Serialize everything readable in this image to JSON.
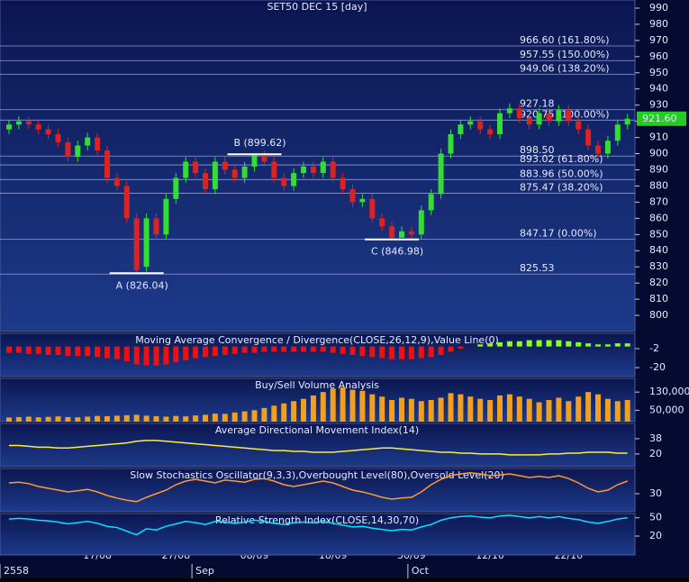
{
  "chart_data": [
    {
      "type": "candlestick",
      "title": "SET50 DEC 15  [day]",
      "categories": [
        null,
        null,
        null,
        null,
        null,
        null,
        null,
        null,
        null,
        "17/08",
        null,
        null,
        null,
        null,
        null,
        null,
        null,
        "27/08",
        null,
        null,
        null,
        null,
        null,
        null,
        null,
        "08/09",
        null,
        null,
        null,
        null,
        null,
        null,
        null,
        "18/09",
        null,
        null,
        null,
        null,
        null,
        null,
        null,
        "30/09",
        null,
        null,
        null,
        null,
        null,
        null,
        null,
        "12/10",
        null,
        null,
        null,
        null,
        null,
        null,
        null,
        "22/10",
        null,
        null,
        null,
        null,
        null,
        null
      ],
      "periods": [
        {
          "label": "2558",
          "start": 0
        },
        {
          "label": "Sep",
          "start": 19
        },
        {
          "label": "Oct",
          "start": 41
        }
      ],
      "open": [
        915,
        918,
        920,
        918,
        915,
        912,
        907,
        898,
        905,
        910,
        902,
        885,
        880,
        860,
        830,
        860,
        850,
        872,
        885,
        895,
        888,
        878,
        895,
        890,
        885,
        892,
        899,
        895,
        885,
        880,
        888,
        892,
        888,
        895,
        885,
        878,
        870,
        872,
        860,
        855,
        848,
        852,
        850,
        865,
        875,
        900,
        912,
        918,
        920,
        915,
        912,
        925,
        928,
        922,
        918,
        925,
        920,
        927,
        920,
        915,
        905,
        900,
        908,
        918
      ],
      "high": [
        921,
        923,
        923,
        921,
        918,
        915,
        910,
        908,
        913,
        913,
        905,
        888,
        883,
        863,
        863,
        863,
        875,
        888,
        898,
        898,
        891,
        898,
        898,
        893,
        895,
        899.62,
        902,
        898,
        888,
        891,
        895,
        895,
        898,
        898,
        888,
        881,
        875,
        875,
        863,
        858,
        855,
        855,
        868,
        878,
        903,
        915,
        921,
        923,
        923,
        918,
        928,
        931,
        931,
        925,
        928,
        928,
        930,
        930,
        923,
        918,
        908,
        911,
        921,
        924.6
      ],
      "low": [
        912,
        915,
        915,
        912,
        909,
        904,
        895,
        895,
        902,
        899,
        882,
        877,
        857,
        826.04,
        827,
        847,
        847,
        869,
        882,
        885,
        875,
        875,
        887,
        882,
        882,
        889,
        892,
        882,
        877,
        877,
        885,
        885,
        885,
        882,
        875,
        867,
        867,
        857,
        852,
        846.98,
        849,
        847.5,
        847,
        862,
        872,
        897,
        909,
        915,
        912,
        909,
        909,
        922,
        919,
        915,
        915,
        917,
        917,
        917,
        912,
        902,
        897,
        897,
        905,
        915
      ],
      "close": [
        918,
        920,
        918,
        915,
        912,
        907,
        898,
        905,
        910,
        902,
        885,
        880,
        860,
        828,
        860,
        850,
        872,
        885,
        895,
        888,
        878,
        895,
        890,
        885,
        892,
        899,
        895,
        885,
        880,
        888,
        892,
        888,
        895,
        885,
        878,
        870,
        872,
        860,
        855,
        848,
        852,
        850,
        865,
        875,
        900,
        912,
        918,
        920,
        915,
        912,
        925,
        928,
        922,
        918,
        925,
        920,
        927,
        920,
        915,
        905,
        900,
        908,
        918,
        921.6
      ],
      "close_label": "921.60",
      "up_color": "#33dd33",
      "down_color": "#dd2222",
      "ylim": [
        790,
        995
      ],
      "yticks": [
        800,
        810,
        820,
        830,
        840,
        850,
        860,
        870,
        880,
        890,
        900,
        910,
        920,
        930,
        940,
        950,
        960,
        970,
        980,
        990
      ],
      "levels": [
        {
          "value": 966.6,
          "label": "966.60 (161.80%)"
        },
        {
          "value": 957.55,
          "label": "957.55 (150.00%)"
        },
        {
          "value": 949.06,
          "label": "949.06 (138.20%)"
        },
        {
          "value": 927.18,
          "label": "927.18"
        },
        {
          "value": 920.75,
          "label": "920.75 (100.00%)"
        },
        {
          "value": 898.5,
          "label": "898.50"
        },
        {
          "value": 893.02,
          "label": "893.02 (61.80%)"
        },
        {
          "value": 883.96,
          "label": "883.96 (50.00%)"
        },
        {
          "value": 875.47,
          "label": "875.47 (38.20%)"
        },
        {
          "value": 847.17,
          "label": "847.17 (0.00%)"
        },
        {
          "value": 825.53,
          "label": "825.53"
        }
      ],
      "annotations": [
        {
          "label": "A (826.04)",
          "value": 826.04,
          "index": 13,
          "position": "below"
        },
        {
          "label": "B (899.62)",
          "value": 899.62,
          "index": 25,
          "position": "above"
        },
        {
          "label": "C (846.98)",
          "value": 846.98,
          "index": 39,
          "position": "below"
        }
      ]
    },
    {
      "type": "bar",
      "title": "Moving Average Convergence / Divergence(CLOSE,26,12,9),Value Line(0)",
      "up_color": "#88ff22",
      "down_color": "#ee1111",
      "ylim": [
        -28.5,
        12.5
      ],
      "yticks": [
        -2,
        -20
      ],
      "values": [
        -6,
        -6,
        -7,
        -7,
        -8,
        -8,
        -9,
        -9,
        -9,
        -10,
        -11,
        -12,
        -14,
        -17,
        -18,
        -18,
        -17,
        -15,
        -13,
        -11,
        -10,
        -9,
        -8,
        -7,
        -6,
        -6,
        -5,
        -5,
        -5,
        -5,
        -5,
        -5,
        -5,
        -6,
        -7,
        -8,
        -9,
        -10,
        -11,
        -12,
        -12,
        -12,
        -11,
        -10,
        -8,
        -5,
        -2,
        0,
        2,
        3,
        4,
        5,
        5,
        6,
        6,
        6,
        6,
        5,
        4,
        3,
        2,
        2,
        3,
        3
      ]
    },
    {
      "type": "bar",
      "title": "Buy/Sell Volume Analysis",
      "color": "#f0a020",
      "ylim": [
        0,
        190000
      ],
      "yticks": [
        {
          "value": 130000,
          "label": "130,000"
        },
        {
          "value": 50000,
          "label": "50,000"
        }
      ],
      "values": [
        18000,
        20000,
        22000,
        19000,
        21000,
        23000,
        20000,
        19000,
        22000,
        25000,
        24000,
        26000,
        28000,
        30000,
        26000,
        24000,
        22000,
        25000,
        23000,
        27000,
        30000,
        35000,
        34000,
        40000,
        45000,
        50000,
        60000,
        70000,
        80000,
        90000,
        100000,
        115000,
        130000,
        145000,
        150000,
        140000,
        135000,
        120000,
        110000,
        95000,
        105000,
        100000,
        90000,
        95000,
        105000,
        125000,
        120000,
        110000,
        100000,
        95000,
        115000,
        120000,
        110000,
        100000,
        85000,
        95000,
        105000,
        90000,
        110000,
        130000,
        120000,
        100000,
        90000,
        95000
      ]
    },
    {
      "type": "line",
      "title": "Average Directional Movement Index(14)",
      "color": "#ffee33",
      "ylim": [
        5,
        56
      ],
      "yticks": [
        38,
        20
      ],
      "values": [
        30,
        30,
        29,
        28,
        28,
        27,
        27,
        28,
        29,
        30,
        31,
        32,
        33,
        35,
        36,
        36,
        35,
        34,
        33,
        32,
        31,
        30,
        29,
        28,
        27,
        26,
        25,
        24,
        24,
        23,
        23,
        22,
        22,
        22,
        23,
        24,
        25,
        26,
        27,
        27,
        26,
        25,
        24,
        23,
        22,
        22,
        21,
        21,
        20,
        20,
        20,
        19,
        19,
        19,
        19,
        20,
        20,
        21,
        21,
        22,
        22,
        22,
        21,
        21
      ]
    },
    {
      "type": "line",
      "title": "Slow Stochastics Oscillator(9,3,3),Overbought Level(80),Oversold Level(20)",
      "color": "#ff9933",
      "ylim": [
        -20,
        100
      ],
      "yticks": [
        30
      ],
      "values": [
        60,
        62,
        58,
        50,
        45,
        40,
        35,
        38,
        42,
        35,
        25,
        18,
        12,
        8,
        20,
        30,
        40,
        55,
        65,
        70,
        65,
        60,
        68,
        65,
        62,
        70,
        72,
        65,
        55,
        50,
        55,
        60,
        65,
        60,
        50,
        40,
        35,
        28,
        20,
        15,
        18,
        20,
        35,
        55,
        70,
        80,
        85,
        88,
        85,
        80,
        82,
        85,
        80,
        75,
        78,
        75,
        80,
        72,
        60,
        45,
        35,
        40,
        55,
        65
      ]
    },
    {
      "type": "line",
      "title": "Relative Strength Index(CLOSE,14,30,70)",
      "color": "#00e5ff",
      "ylim": [
        -11,
        57
      ],
      "yticks": [
        50,
        20
      ],
      "values": [
        48,
        49,
        48,
        46,
        45,
        43,
        40,
        42,
        44,
        41,
        36,
        34,
        28,
        22,
        32,
        30,
        36,
        40,
        44,
        42,
        39,
        44,
        43,
        41,
        43,
        46,
        44,
        41,
        39,
        42,
        43,
        42,
        44,
        41,
        38,
        35,
        36,
        33,
        31,
        29,
        31,
        30,
        35,
        39,
        46,
        50,
        52,
        53,
        51,
        50,
        53,
        54,
        52,
        50,
        52,
        50,
        52,
        49,
        47,
        43,
        41,
        44,
        48,
        50
      ]
    }
  ]
}
